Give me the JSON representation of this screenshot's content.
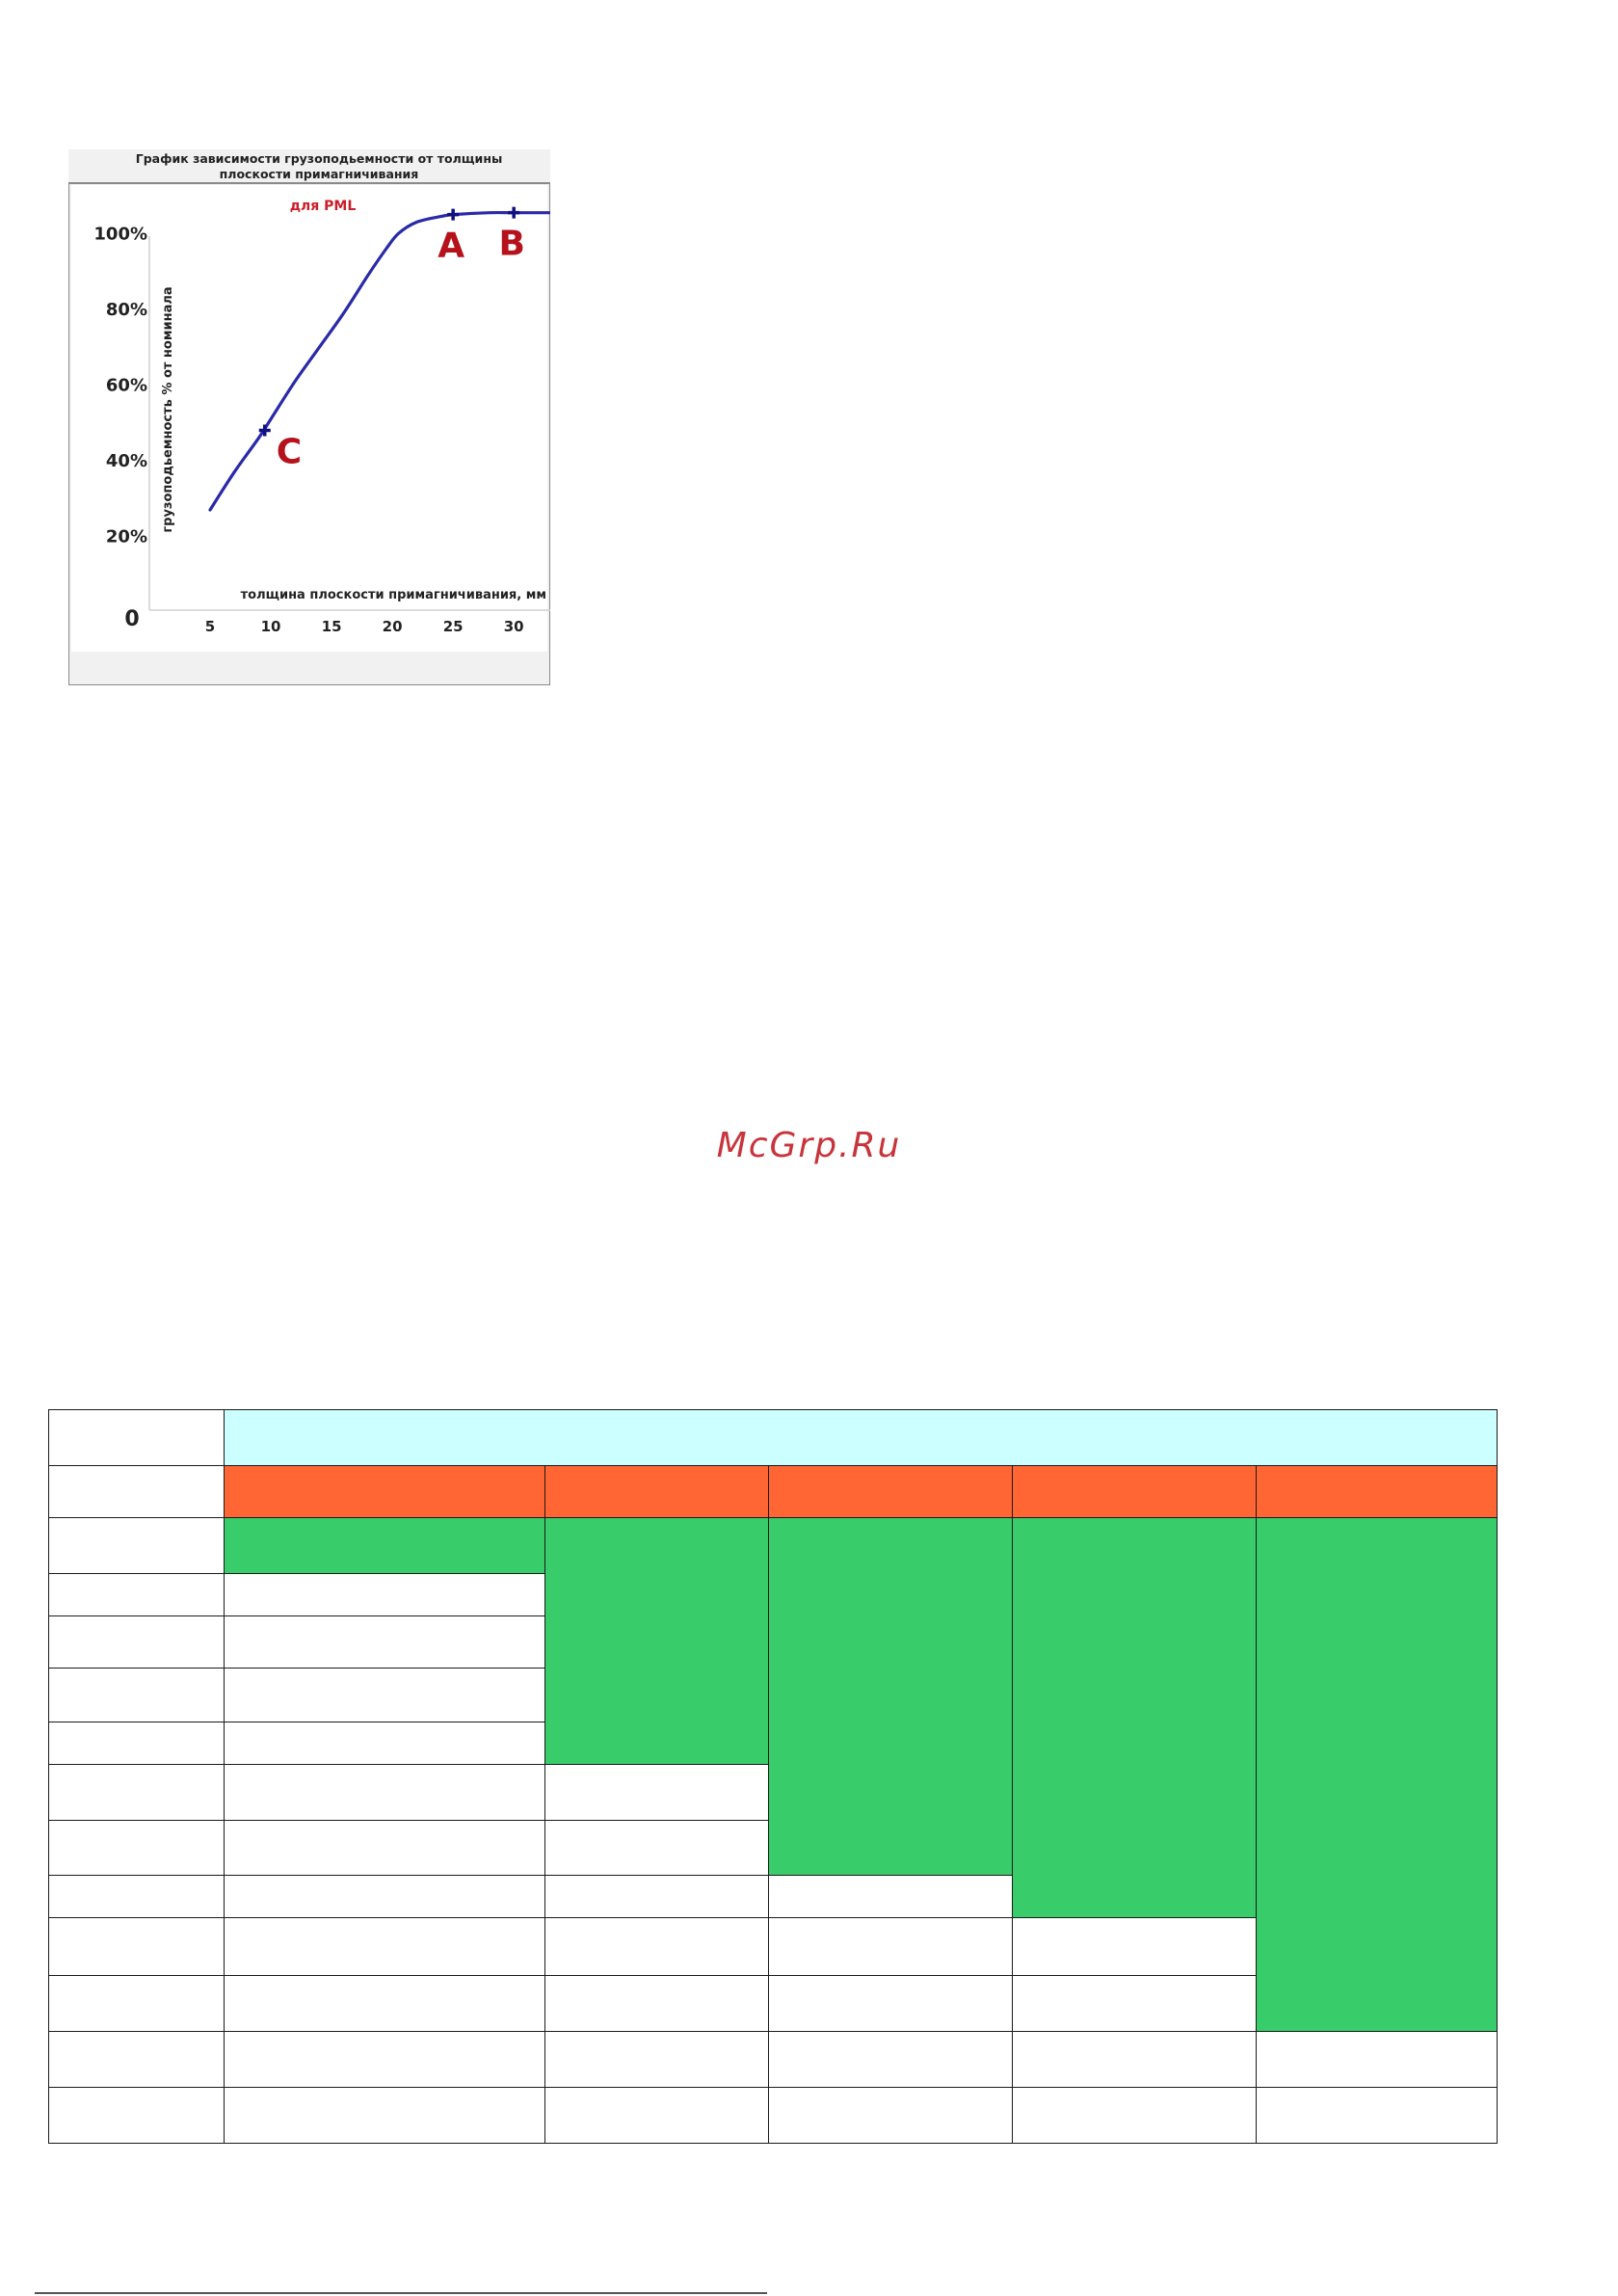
{
  "chart_data": {
    "type": "line",
    "title": "График зависимости грузоподьемности от толщины плоскости примагничивания",
    "subtitle": "для PML",
    "xlabel": "толщина плоскости примагничивания, мм",
    "ylabel": "грузоподьемность % от номинала",
    "x_ticks": [
      "5",
      "10",
      "15",
      "20",
      "25",
      "30"
    ],
    "y_ticks": [
      "20%",
      "40%",
      "60%",
      "80%",
      "100%"
    ],
    "origin_label": "0",
    "xlim": [
      0,
      33
    ],
    "ylim": [
      0,
      110
    ],
    "grid": false,
    "series": [
      {
        "x": [
          5,
          7,
          9,
          10,
          12,
          14,
          16,
          18,
          19.5,
          20.5,
          22,
          24,
          25,
          28,
          30,
          33
        ],
        "y": [
          27,
          37,
          46,
          51,
          61,
          70,
          79,
          89,
          96,
          100,
          103,
          104.5,
          105,
          105.5,
          105.5,
          105.5
        ],
        "color": "#2a2aa8"
      }
    ],
    "annotations": [
      {
        "label": "A",
        "x": 25,
        "y": 105,
        "color": "#b5121b"
      },
      {
        "label": "B",
        "x": 30,
        "y": 105.5,
        "color": "#b5121b"
      },
      {
        "label": "C",
        "x": 9.5,
        "y": 48,
        "color": "#b5121b"
      }
    ],
    "title_color": "#222222",
    "subtitle_color": "#c8202a"
  },
  "watermark": "McGrp.Ru"
}
